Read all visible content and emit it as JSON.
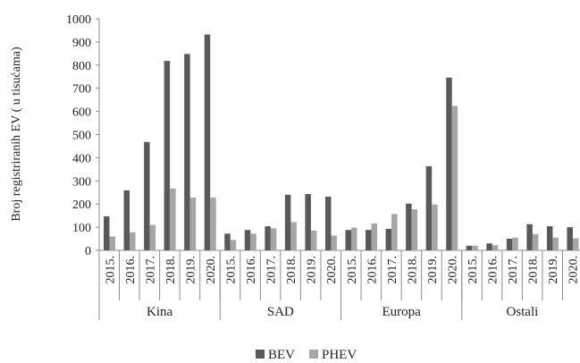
{
  "chart_data": {
    "type": "bar",
    "ylabel": "Broj registriranih EV ( u tisućama)",
    "ylim": [
      0,
      1000
    ],
    "yticks": [
      "0",
      "100",
      "200",
      "300",
      "400",
      "500",
      "600",
      "700",
      "800",
      "900",
      "1000"
    ],
    "grid": false,
    "legend_position": "bottom",
    "groups": [
      {
        "name": "Kina",
        "categories": [
          "2015.",
          "2016.",
          "2017.",
          "2018.",
          "2019.",
          "2020."
        ],
        "series": [
          {
            "name": "BEV",
            "values": [
              147,
              259,
              468,
              818,
              848,
              932
            ]
          },
          {
            "name": "PHEV",
            "values": [
              60,
              78,
              110,
              267,
              228,
              228
            ]
          }
        ]
      },
      {
        "name": "SAD",
        "categories": [
          "2015.",
          "2016.",
          "2017.",
          "2018.",
          "2019.",
          "2020."
        ],
        "series": [
          {
            "name": "BEV",
            "values": [
              72,
              88,
              104,
              240,
              243,
              232
            ]
          },
          {
            "name": "PHEV",
            "values": [
              45,
              72,
              95,
              122,
              85,
              64
            ]
          }
        ]
      },
      {
        "name": "Europa",
        "categories": [
          "2015.",
          "2016.",
          "2017.",
          "2018.",
          "2019.",
          "2020."
        ],
        "series": [
          {
            "name": "BEV",
            "values": [
              88,
              88,
              93,
              202,
              363,
              746
            ]
          },
          {
            "name": "PHEV",
            "values": [
              98,
              116,
              157,
              177,
              198,
              624
            ]
          }
        ]
      },
      {
        "name": "Ostali",
        "categories": [
          "2015.",
          "2016.",
          "2017.",
          "2018.",
          "2019.",
          "2020."
        ],
        "series": [
          {
            "name": "BEV",
            "values": [
              20,
              30,
              50,
              113,
              104,
              100
            ]
          },
          {
            "name": "PHEV",
            "values": [
              20,
              22,
              55,
              70,
              55,
              52
            ]
          }
        ]
      }
    ],
    "colors": {
      "BEV": "#595959",
      "PHEV": "#a6a6a6"
    }
  }
}
